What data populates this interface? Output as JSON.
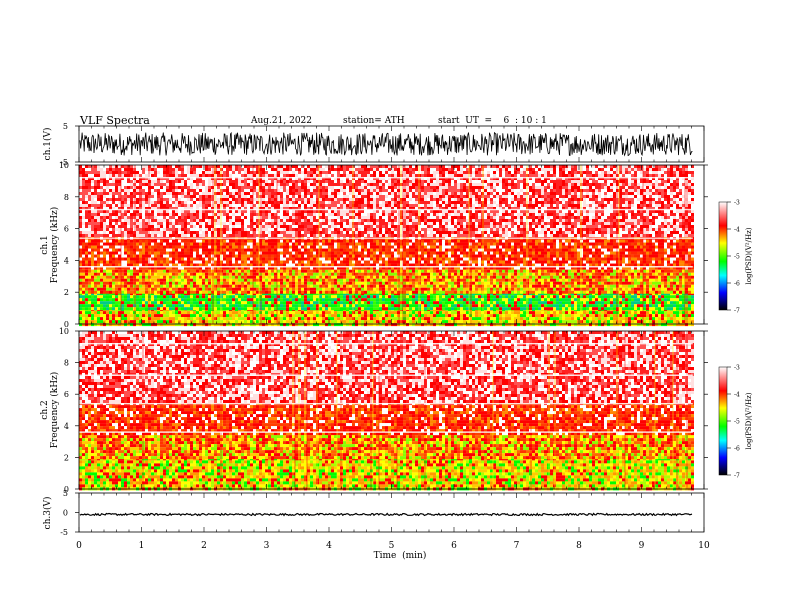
{
  "header": {
    "title": "VLF  Spectra",
    "date": "Aug.21, 2022",
    "station": "station= ATH",
    "start": "start  UT  =    6  : 10 : 1"
  },
  "chart_data": [
    {
      "type": "line",
      "name": "ch1-waveform",
      "ylabel": "ch.1(V)",
      "ylim": [
        -5,
        5
      ],
      "yticks": [
        5,
        -5
      ],
      "x_range_min": [
        0,
        9.82
      ],
      "amplitude_v": 3.2,
      "color": "#000000"
    },
    {
      "type": "heatmap",
      "name": "ch1-spectrogram",
      "ylabel": "ch.1\nFrequency (kHz)",
      "ylim": [
        0,
        10
      ],
      "yticks": [
        0,
        2,
        4,
        6,
        8,
        10
      ],
      "x_range_min": [
        0,
        9.82
      ],
      "colorbar": {
        "label": "log(PSD)(V²/Hz)",
        "ticks": [
          -3,
          -4,
          -5,
          -6,
          -7
        ],
        "range": [
          -7,
          -3
        ],
        "colors": [
          "#000000",
          "#0000ff",
          "#00ffff",
          "#00ff00",
          "#ffff00",
          "#ff0000",
          "#ffffff"
        ]
      },
      "bands_khz": [
        {
          "from": 0,
          "to": 1.0,
          "level": "yellow-green"
        },
        {
          "from": 1.0,
          "to": 2.0,
          "level": "green"
        },
        {
          "from": 2.0,
          "to": 3.6,
          "level": "orange"
        },
        {
          "from": 3.6,
          "to": 5.5,
          "level": "red"
        },
        {
          "from": 5.5,
          "to": 10,
          "level": "red-white"
        }
      ]
    },
    {
      "type": "heatmap",
      "name": "ch2-spectrogram",
      "ylabel": "ch.2\nFrequency (kHz)",
      "ylim": [
        0,
        10
      ],
      "yticks": [
        0,
        2,
        4,
        6,
        8,
        10
      ],
      "x_range_min": [
        0,
        9.82
      ],
      "colorbar": {
        "label": "log(PSD)(V²/Hz)",
        "ticks": [
          -3,
          -4,
          -5,
          -6,
          -7
        ],
        "range": [
          -7,
          -3
        ],
        "colors": [
          "#000000",
          "#0000ff",
          "#00ffff",
          "#00ff00",
          "#ffff00",
          "#ff0000",
          "#ffffff"
        ]
      },
      "bands_khz": [
        {
          "from": 0,
          "to": 2.0,
          "level": "yellow-green"
        },
        {
          "from": 2.0,
          "to": 3.6,
          "level": "orange"
        },
        {
          "from": 3.6,
          "to": 5.5,
          "level": "red"
        },
        {
          "from": 5.5,
          "to": 10,
          "level": "red-white"
        }
      ]
    },
    {
      "type": "line",
      "name": "ch3-waveform",
      "ylabel": "ch.3(V)",
      "ylim": [
        -5,
        5
      ],
      "yticks": [
        5,
        0,
        -5
      ],
      "x_range_min": [
        0,
        9.82
      ],
      "level_v": -0.5,
      "amplitude_v": 0.25,
      "color": "#000000"
    }
  ],
  "x_axis": {
    "label": "Time  (min)",
    "range": [
      0,
      10
    ],
    "ticks": [
      "0",
      "1",
      "2",
      "3",
      "4",
      "5",
      "6",
      "7",
      "8",
      "9",
      "10"
    ]
  },
  "colors": {
    "frame": "#000000",
    "background": "#ffffff"
  }
}
